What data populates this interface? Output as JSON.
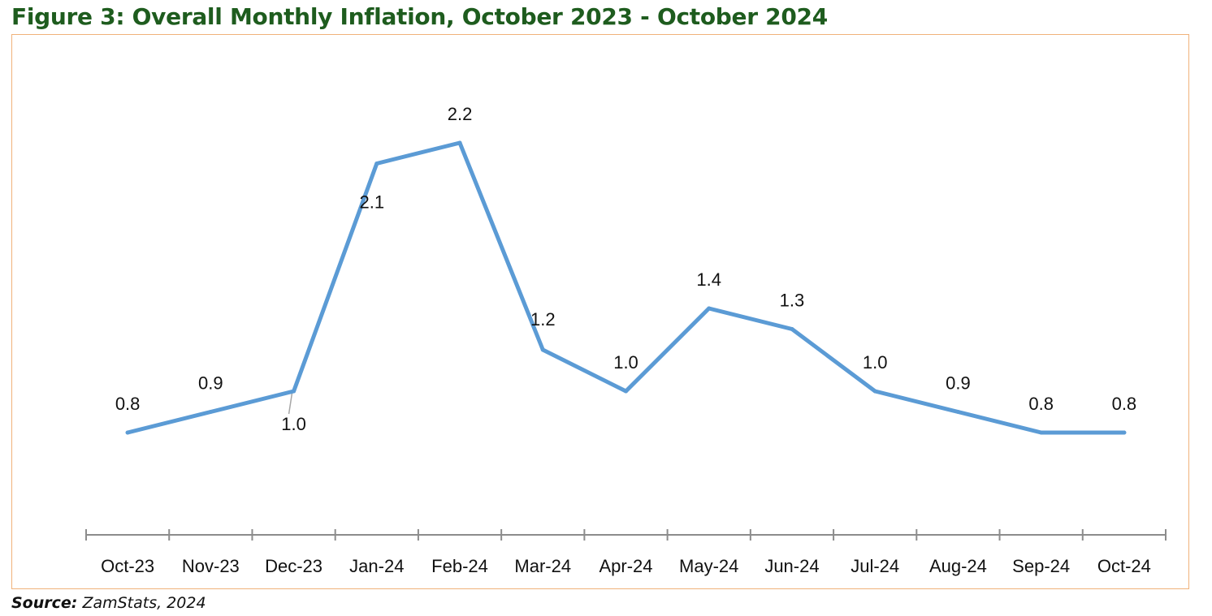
{
  "figure_title": "Figure 3: Overall Monthly Inflation, October 2023 - October 2024",
  "source": {
    "label": "Source:",
    "text": "ZamStats, 2024"
  },
  "colors": {
    "line": "#5b9bd5",
    "title": "#1e5c1e",
    "border": "#f0b27a",
    "axis": "#8c8c8c"
  },
  "chart_data": {
    "type": "line",
    "title": "Figure 3: Overall Monthly Inflation, October 2023 - October 2024",
    "xlabel": "",
    "ylabel": "",
    "categories": [
      "Oct-23",
      "Nov-23",
      "Dec-23",
      "Jan-24",
      "Feb-24",
      "Mar-24",
      "Apr-24",
      "May-24",
      "Jun-24",
      "Jul-24",
      "Aug-24",
      "Sep-24",
      "Oct-24"
    ],
    "series": [
      {
        "values": [
          0.8,
          0.9,
          1.0,
          2.1,
          2.2,
          1.2,
          1.0,
          1.4,
          1.3,
          1.0,
          0.9,
          0.8,
          0.8
        ],
        "labels": [
          "0.8",
          "0.9",
          "1.0",
          "2.1",
          "2.2",
          "1.2",
          "1.0",
          "1.4",
          "1.3",
          "1.0",
          "0.9",
          "0.8",
          "0.8"
        ]
      }
    ],
    "grid": false,
    "legend": "none"
  }
}
